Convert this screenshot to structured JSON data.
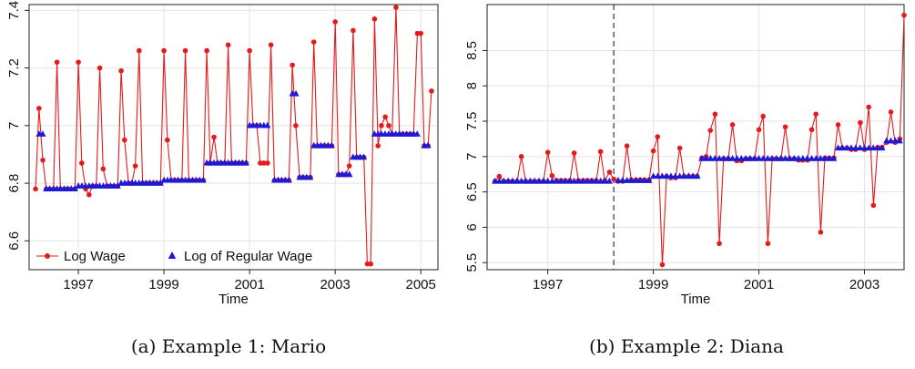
{
  "chart_data": [
    {
      "type": "line",
      "caption": "(a) Example 1: Mario",
      "xlabel": "Time",
      "ylabel": "",
      "xlim": [
        1995.85,
        2005.4
      ],
      "ylim": [
        6.5,
        7.42
      ],
      "xticks": [
        1997,
        1999,
        2001,
        2003,
        2005
      ],
      "yticks": [
        6.6,
        6.8,
        7.0,
        7.2,
        7.4
      ],
      "ytick_labels": [
        "6.6",
        "6.8",
        "7",
        "7.2",
        "7.4"
      ],
      "grid": true,
      "legend_position": "bottom-left",
      "colors": {
        "log_wage": "#e41a1c",
        "regular_wage": "#1a1ad8"
      },
      "series": [
        {
          "name": "Log Wage",
          "marker": "circle",
          "values": [
            [
              1996.0,
              6.78
            ],
            [
              1996.08,
              7.06
            ],
            [
              1996.17,
              6.88
            ],
            [
              1996.25,
              6.78
            ],
            [
              1996.33,
              6.78
            ],
            [
              1996.42,
              6.78
            ],
            [
              1996.5,
              7.22
            ],
            [
              1996.58,
              6.78
            ],
            [
              1996.67,
              6.78
            ],
            [
              1996.75,
              6.78
            ],
            [
              1996.83,
              6.78
            ],
            [
              1996.92,
              6.78
            ],
            [
              1997.0,
              7.22
            ],
            [
              1997.08,
              6.87
            ],
            [
              1997.17,
              6.78
            ],
            [
              1997.25,
              6.76
            ],
            [
              1997.33,
              6.79
            ],
            [
              1997.42,
              6.79
            ],
            [
              1997.5,
              7.2
            ],
            [
              1997.58,
              6.85
            ],
            [
              1997.67,
              6.79
            ],
            [
              1997.75,
              6.79
            ],
            [
              1997.83,
              6.79
            ],
            [
              1997.92,
              6.79
            ],
            [
              1998.0,
              7.19
            ],
            [
              1998.08,
              6.95
            ],
            [
              1998.17,
              6.8
            ],
            [
              1998.25,
              6.8
            ],
            [
              1998.33,
              6.86
            ],
            [
              1998.42,
              7.26
            ],
            [
              1998.5,
              6.8
            ],
            [
              1998.58,
              6.8
            ],
            [
              1998.67,
              6.8
            ],
            [
              1998.75,
              6.8
            ],
            [
              1998.83,
              6.8
            ],
            [
              1998.92,
              6.8
            ],
            [
              1999.0,
              7.26
            ],
            [
              1999.08,
              6.95
            ],
            [
              1999.17,
              6.81
            ],
            [
              1999.25,
              6.81
            ],
            [
              1999.33,
              6.81
            ],
            [
              1999.42,
              6.81
            ],
            [
              1999.5,
              7.26
            ],
            [
              1999.58,
              6.81
            ],
            [
              1999.67,
              6.81
            ],
            [
              1999.75,
              6.81
            ],
            [
              1999.83,
              6.81
            ],
            [
              1999.92,
              6.81
            ],
            [
              2000.0,
              7.26
            ],
            [
              2000.08,
              6.87
            ],
            [
              2000.17,
              6.96
            ],
            [
              2000.25,
              6.87
            ],
            [
              2000.33,
              6.87
            ],
            [
              2000.42,
              6.87
            ],
            [
              2000.5,
              7.28
            ],
            [
              2000.58,
              6.87
            ],
            [
              2000.67,
              6.87
            ],
            [
              2000.75,
              6.87
            ],
            [
              2000.83,
              6.87
            ],
            [
              2000.92,
              6.87
            ],
            [
              2001.0,
              7.26
            ],
            [
              2001.08,
              7.0
            ],
            [
              2001.17,
              7.0
            ],
            [
              2001.25,
              6.87
            ],
            [
              2001.33,
              6.87
            ],
            [
              2001.42,
              6.87
            ],
            [
              2001.5,
              7.28
            ],
            [
              2001.58,
              6.81
            ],
            [
              2001.67,
              6.81
            ],
            [
              2001.75,
              6.81
            ],
            [
              2001.83,
              6.81
            ],
            [
              2001.92,
              6.81
            ],
            [
              2002.0,
              7.21
            ],
            [
              2002.08,
              7.0
            ],
            [
              2002.17,
              6.82
            ],
            [
              2002.25,
              6.82
            ],
            [
              2002.33,
              6.82
            ],
            [
              2002.42,
              6.82
            ],
            [
              2002.5,
              7.29
            ],
            [
              2002.58,
              6.93
            ],
            [
              2002.67,
              6.93
            ],
            [
              2002.75,
              6.93
            ],
            [
              2002.83,
              6.93
            ],
            [
              2002.92,
              6.93
            ],
            [
              2003.0,
              7.36
            ],
            [
              2003.08,
              6.83
            ],
            [
              2003.17,
              6.83
            ],
            [
              2003.25,
              6.83
            ],
            [
              2003.33,
              6.86
            ],
            [
              2003.42,
              7.33
            ],
            [
              2003.5,
              6.89
            ],
            [
              2003.58,
              6.89
            ],
            [
              2003.67,
              6.89
            ],
            [
              2003.75,
              6.52
            ],
            [
              2003.83,
              6.52
            ],
            [
              2003.92,
              7.37
            ],
            [
              2004.0,
              6.93
            ],
            [
              2004.08,
              7.0
            ],
            [
              2004.17,
              7.03
            ],
            [
              2004.25,
              7.0
            ],
            [
              2004.33,
              6.97
            ],
            [
              2004.42,
              7.41
            ],
            [
              2004.5,
              6.97
            ],
            [
              2004.58,
              6.97
            ],
            [
              2004.67,
              6.97
            ],
            [
              2004.75,
              6.97
            ],
            [
              2004.83,
              6.97
            ],
            [
              2004.92,
              7.32
            ],
            [
              2005.0,
              7.32
            ],
            [
              2005.08,
              6.93
            ],
            [
              2005.17,
              6.93
            ],
            [
              2005.25,
              7.12
            ]
          ]
        },
        {
          "name": "Log of Regular Wage",
          "marker": "triangle",
          "segments": [
            {
              "x": [
                1996.08,
                1996.17
              ],
              "y": 6.97
            },
            {
              "x": [
                1996.25,
                1996.92
              ],
              "y": 6.78
            },
            {
              "x": [
                1997.0,
                1997.92
              ],
              "y": 6.79
            },
            {
              "x": [
                1998.0,
                1998.92
              ],
              "y": 6.8
            },
            {
              "x": [
                1999.0,
                1999.92
              ],
              "y": 6.81
            },
            {
              "x": [
                2000.0,
                2000.92
              ],
              "y": 6.87
            },
            {
              "x": [
                2001.0,
                2001.42
              ],
              "y": 7.0
            },
            {
              "x": [
                2001.58,
                2001.92
              ],
              "y": 6.81
            },
            {
              "x": [
                2002.0,
                2002.08
              ],
              "y": 7.11
            },
            {
              "x": [
                2002.17,
                2002.42
              ],
              "y": 6.82
            },
            {
              "x": [
                2002.5,
                2002.92
              ],
              "y": 6.93
            },
            {
              "x": [
                2003.08,
                2003.33
              ],
              "y": 6.83
            },
            {
              "x": [
                2003.42,
                2003.67
              ],
              "y": 6.89
            },
            {
              "x": [
                2003.92,
                2004.92
              ],
              "y": 6.97
            },
            {
              "x": [
                2005.08,
                2005.17
              ],
              "y": 6.93
            }
          ]
        }
      ]
    },
    {
      "type": "line",
      "caption": "(b) Example 2: Diana",
      "xlabel": "Time",
      "ylabel": "",
      "xlim": [
        1995.85,
        2003.75
      ],
      "ylim": [
        5.4,
        9.15
      ],
      "xticks": [
        1997,
        1999,
        2001,
        2003
      ],
      "yticks": [
        5.5,
        6.0,
        6.5,
        7.0,
        7.5,
        8.0,
        8.5
      ],
      "ytick_labels": [
        "5.5",
        "6",
        "6.5",
        "7",
        "7.5",
        "8",
        "8.5"
      ],
      "grid": true,
      "vline_x": 1998.25,
      "colors": {
        "log_wage": "#e41a1c",
        "regular_wage": "#1a1ad8"
      },
      "series": [
        {
          "name": "Log Wage",
          "marker": "circle",
          "values": [
            [
              1996.0,
              6.65
            ],
            [
              1996.08,
              6.72
            ],
            [
              1996.17,
              6.65
            ],
            [
              1996.25,
              6.65
            ],
            [
              1996.33,
              6.65
            ],
            [
              1996.42,
              6.65
            ],
            [
              1996.5,
              7.0
            ],
            [
              1996.58,
              6.65
            ],
            [
              1996.67,
              6.65
            ],
            [
              1996.75,
              6.65
            ],
            [
              1996.83,
              6.65
            ],
            [
              1996.92,
              6.65
            ],
            [
              1997.0,
              7.06
            ],
            [
              1997.08,
              6.73
            ],
            [
              1997.17,
              6.66
            ],
            [
              1997.25,
              6.66
            ],
            [
              1997.33,
              6.66
            ],
            [
              1997.42,
              6.66
            ],
            [
              1997.5,
              7.05
            ],
            [
              1997.58,
              6.66
            ],
            [
              1997.67,
              6.66
            ],
            [
              1997.75,
              6.66
            ],
            [
              1997.83,
              6.66
            ],
            [
              1997.92,
              6.66
            ],
            [
              1998.0,
              7.07
            ],
            [
              1998.08,
              6.66
            ],
            [
              1998.17,
              6.78
            ],
            [
              1998.25,
              6.68
            ],
            [
              1998.33,
              6.65
            ],
            [
              1998.42,
              6.65
            ],
            [
              1998.5,
              7.15
            ],
            [
              1998.58,
              6.67
            ],
            [
              1998.67,
              6.67
            ],
            [
              1998.75,
              6.67
            ],
            [
              1998.83,
              6.67
            ],
            [
              1998.92,
              6.67
            ],
            [
              1999.0,
              7.08
            ],
            [
              1999.08,
              7.28
            ],
            [
              1999.17,
              5.47
            ],
            [
              1999.25,
              6.72
            ],
            [
              1999.33,
              6.7
            ],
            [
              1999.42,
              6.7
            ],
            [
              1999.5,
              7.12
            ],
            [
              1999.58,
              6.72
            ],
            [
              1999.67,
              6.72
            ],
            [
              1999.75,
              6.72
            ],
            [
              1999.83,
              6.72
            ],
            [
              1999.92,
              6.98
            ],
            [
              2000.0,
              7.0
            ],
            [
              2000.08,
              7.37
            ],
            [
              2000.17,
              7.6
            ],
            [
              2000.25,
              5.77
            ],
            [
              2000.33,
              6.97
            ],
            [
              2000.42,
              6.97
            ],
            [
              2000.5,
              7.45
            ],
            [
              2000.58,
              6.94
            ],
            [
              2000.67,
              6.94
            ],
            [
              2000.75,
              6.97
            ],
            [
              2000.83,
              6.97
            ],
            [
              2000.92,
              6.97
            ],
            [
              2001.0,
              7.38
            ],
            [
              2001.08,
              7.57
            ],
            [
              2001.17,
              5.77
            ],
            [
              2001.25,
              6.97
            ],
            [
              2001.33,
              6.97
            ],
            [
              2001.42,
              6.97
            ],
            [
              2001.5,
              7.42
            ],
            [
              2001.58,
              6.97
            ],
            [
              2001.67,
              6.97
            ],
            [
              2001.75,
              6.95
            ],
            [
              2001.83,
              6.95
            ],
            [
              2001.92,
              6.95
            ],
            [
              2002.0,
              7.38
            ],
            [
              2002.08,
              7.6
            ],
            [
              2002.17,
              5.93
            ],
            [
              2002.25,
              6.98
            ],
            [
              2002.33,
              6.98
            ],
            [
              2002.42,
              6.98
            ],
            [
              2002.5,
              7.45
            ],
            [
              2002.58,
              7.12
            ],
            [
              2002.67,
              7.12
            ],
            [
              2002.75,
              7.1
            ],
            [
              2002.83,
              7.1
            ],
            [
              2002.92,
              7.48
            ],
            [
              2003.0,
              7.1
            ],
            [
              2003.08,
              7.7
            ],
            [
              2003.17,
              6.31
            ],
            [
              2003.25,
              7.13
            ],
            [
              2003.33,
              7.13
            ],
            [
              2003.42,
              7.2
            ],
            [
              2003.5,
              7.63
            ],
            [
              2003.58,
              7.2
            ],
            [
              2003.67,
              7.25
            ],
            [
              2003.75,
              9.0
            ]
          ]
        },
        {
          "name": "Log of Regular Wage",
          "marker": "triangle",
          "segments": [
            {
              "x": [
                1996.0,
                1998.17
              ],
              "y": 6.65
            },
            {
              "x": [
                1998.33,
                1998.92
              ],
              "y": 6.66
            },
            {
              "x": [
                1999.0,
                1999.83
              ],
              "y": 6.72
            },
            {
              "x": [
                1999.92,
                2002.42
              ],
              "y": 6.97
            },
            {
              "x": [
                2002.5,
                2003.33
              ],
              "y": 7.12
            },
            {
              "x": [
                2003.42,
                2003.67
              ],
              "y": 7.22
            }
          ]
        }
      ]
    }
  ]
}
